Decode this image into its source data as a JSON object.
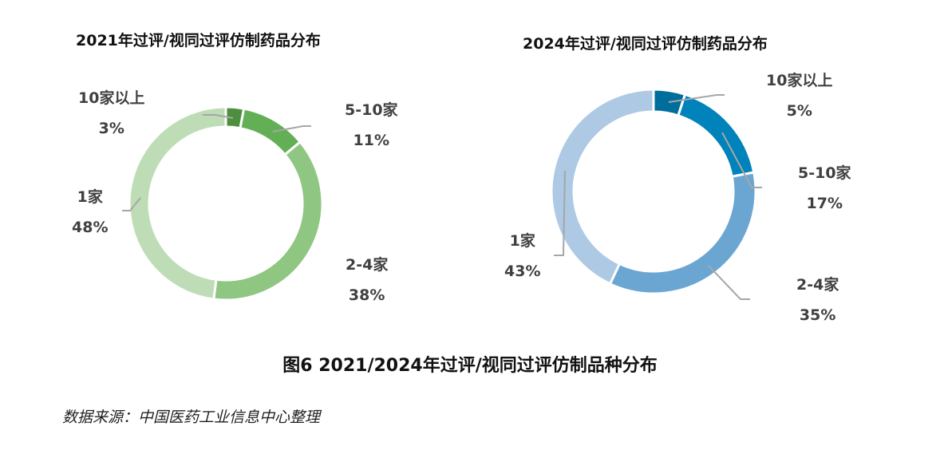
{
  "chart_data": [
    {
      "type": "pie",
      "donut": true,
      "title": "2021年过评/视同过评仿制药品分布",
      "categories": [
        "10家以上",
        "5-10家",
        "2-4家",
        "1家"
      ],
      "values": [
        3,
        11,
        38,
        48
      ],
      "value_labels": [
        "3%",
        "11%",
        "38%",
        "48%"
      ],
      "colors": [
        "#4E8F3F",
        "#62AF55",
        "#8EC682",
        "#BEDDB6"
      ]
    },
    {
      "type": "pie",
      "donut": true,
      "title": "2024年过评/视同过评仿制药品分布",
      "categories": [
        "10家以上",
        "5-10家",
        "2-4家",
        "1家"
      ],
      "values": [
        5,
        17,
        35,
        43
      ],
      "value_labels": [
        "5%",
        "17%",
        "35%",
        "43%"
      ],
      "colors": [
        "#006E9C",
        "#0083BA",
        "#6BA6D2",
        "#ADC9E4"
      ]
    }
  ],
  "caption": "图6 2021/2024年过评/视同过评仿制品种分布",
  "source": "数据来源：中国医药工业信息中心整理"
}
